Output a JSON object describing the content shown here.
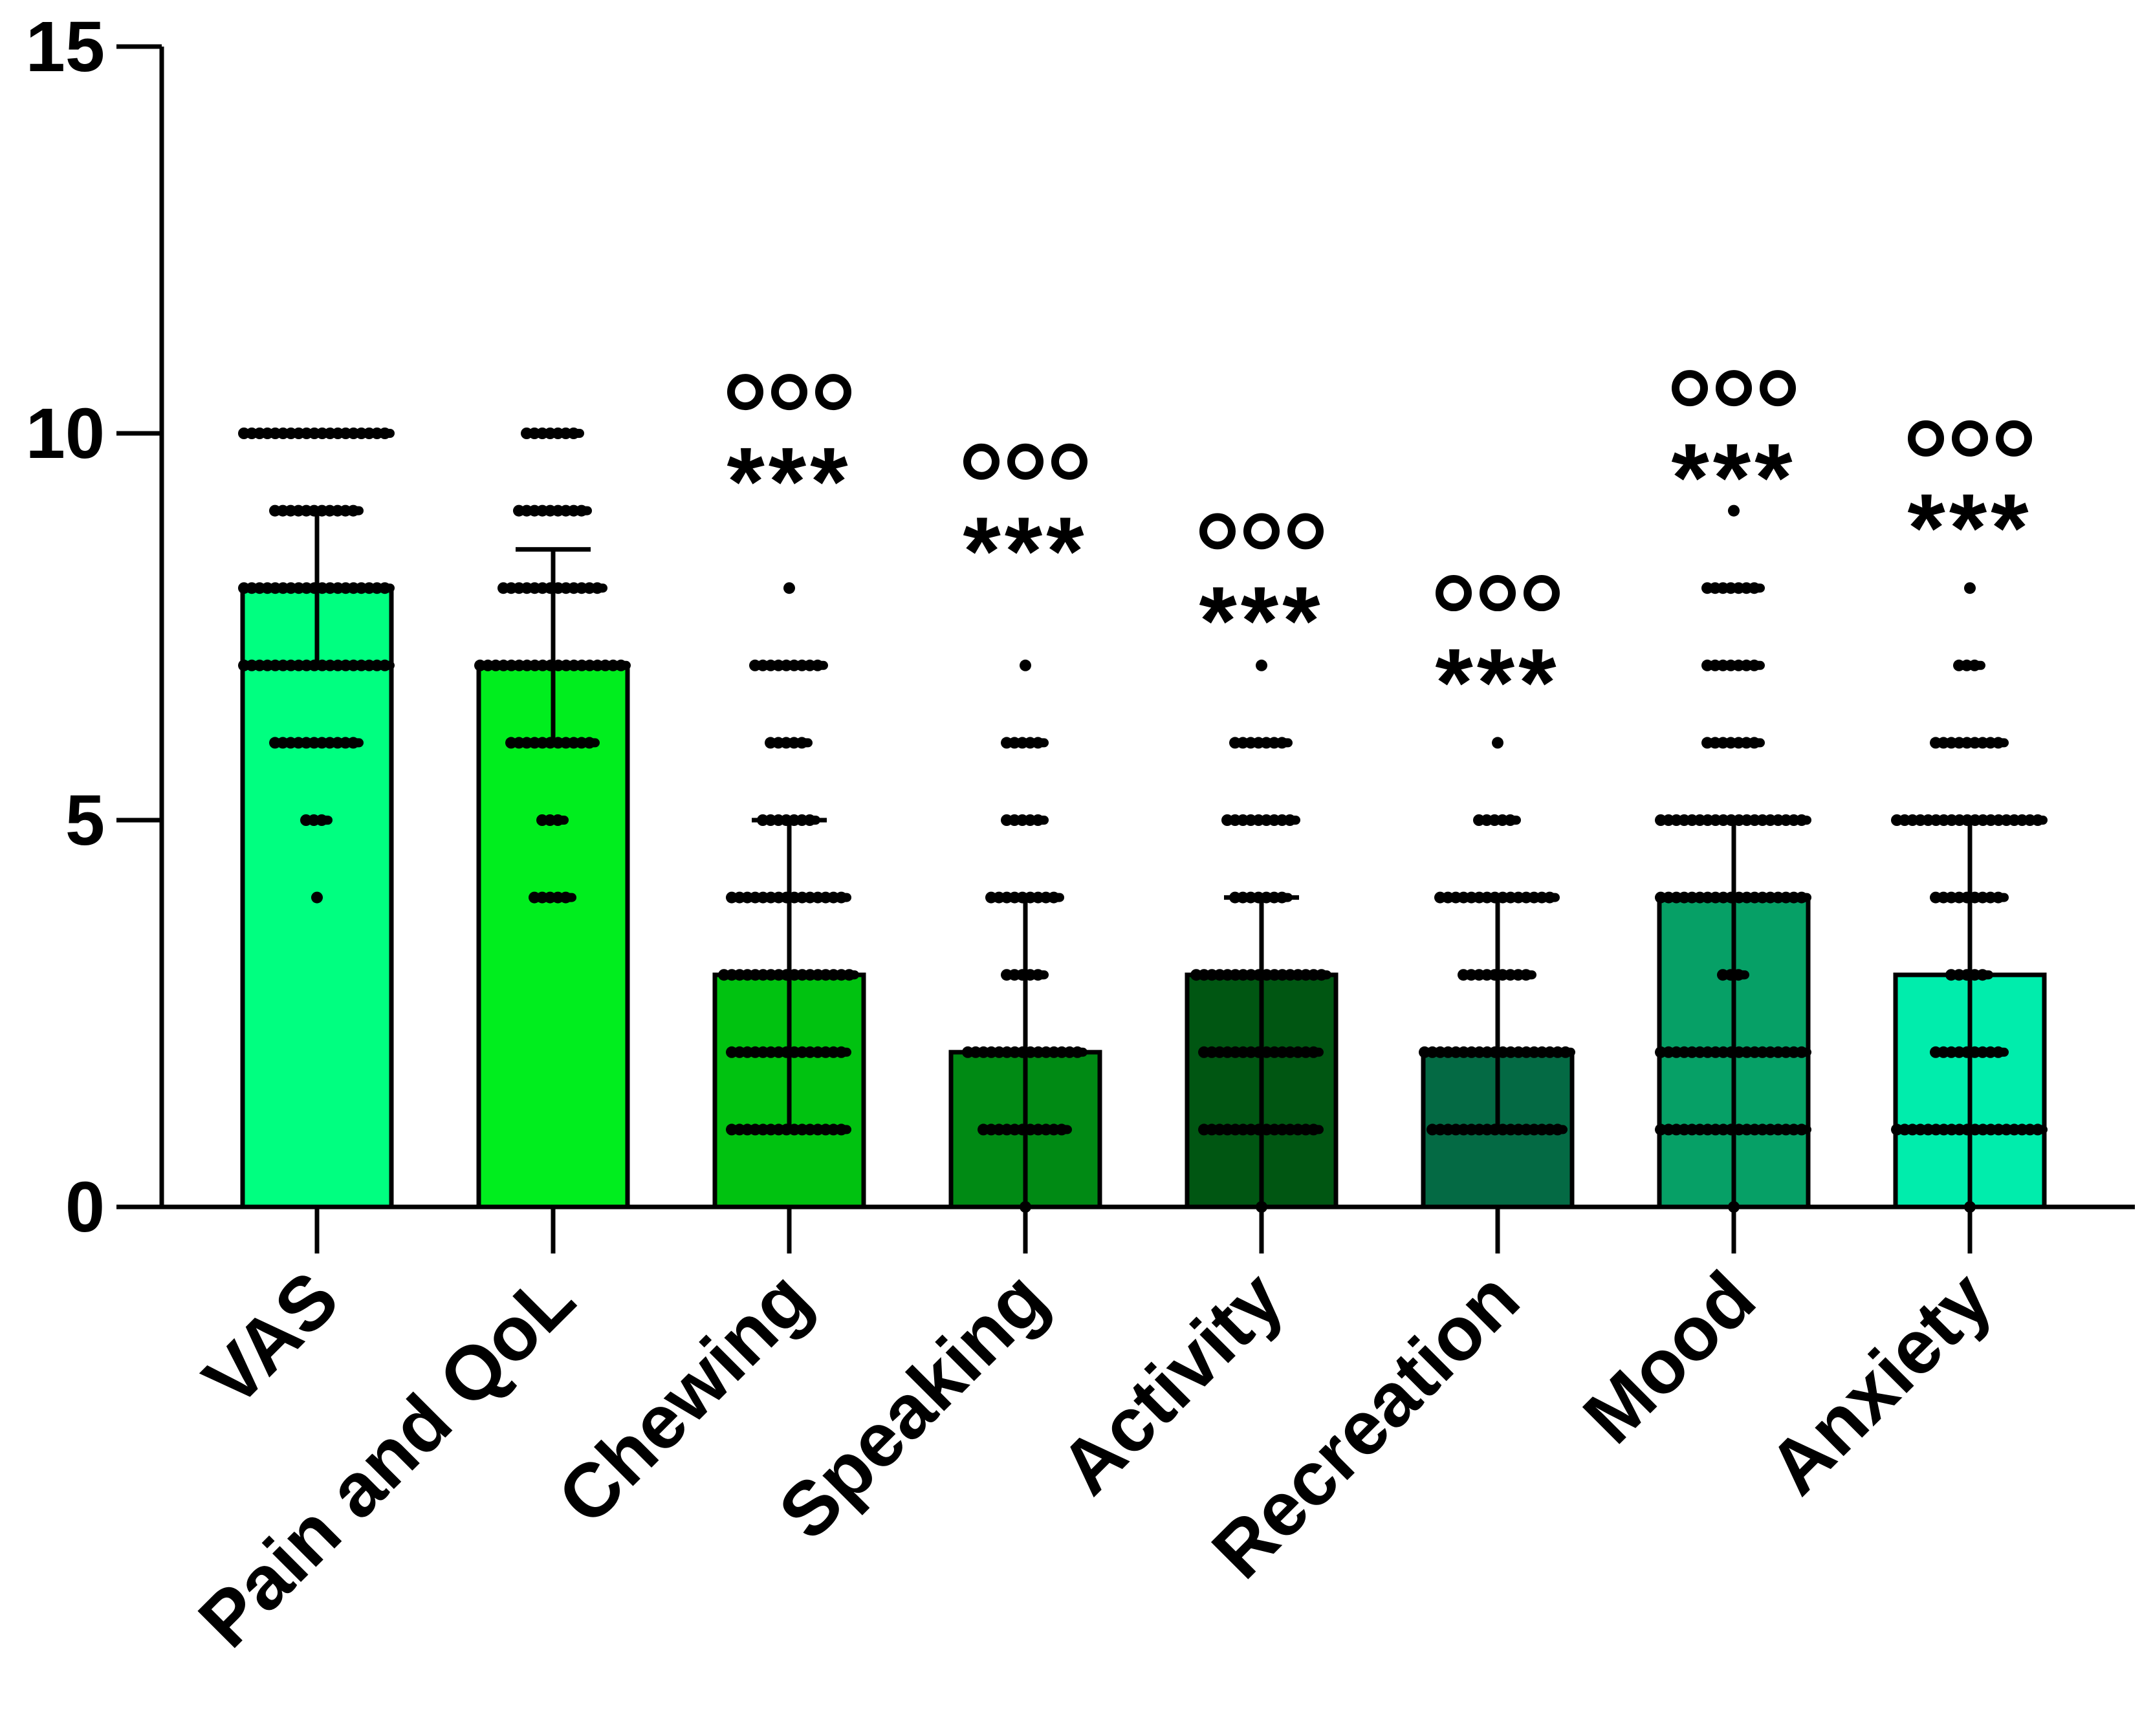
{
  "chart_data": {
    "type": "bar",
    "title": "",
    "xlabel": "",
    "ylabel": "",
    "ylim": [
      0,
      15
    ],
    "yticks": [
      0,
      5,
      10,
      15
    ],
    "grid": false,
    "categories": [
      "VAS",
      "Pain and QoL",
      "Chewing",
      "Speaking",
      "Activity",
      "Recreation",
      "Mood",
      "Anxiety"
    ],
    "values": [
      8,
      7,
      3,
      2,
      3,
      2,
      4,
      3
    ],
    "error_upper": [
      9,
      8.5,
      5,
      4,
      4,
      4,
      5,
      5
    ],
    "error_lower": [
      7,
      6,
      1,
      0,
      0,
      1,
      0,
      0
    ],
    "colors": [
      "#00ff80",
      "#00ee1e",
      "#00c210",
      "#008a14",
      "#005612",
      "#046a44",
      "#06a066",
      "#00edac"
    ],
    "points": [
      [
        4,
        5,
        6,
        7,
        8,
        9,
        10
      ],
      [
        4,
        5,
        6,
        7,
        8,
        9,
        10
      ],
      [
        1,
        2,
        3,
        4,
        5,
        6,
        7,
        8
      ],
      [
        0,
        1,
        2,
        3,
        4,
        5,
        6,
        7
      ],
      [
        0,
        1,
        2,
        3,
        4,
        5,
        6,
        7
      ],
      [
        1,
        2,
        3,
        4,
        5,
        6
      ],
      [
        0,
        1,
        2,
        3,
        4,
        5,
        6,
        7,
        8,
        9
      ],
      [
        0,
        1,
        2,
        3,
        4,
        5,
        6,
        7,
        8
      ]
    ],
    "point_widths": [
      [
        1,
        2,
        6,
        10,
        10,
        6,
        10
      ],
      [
        3,
        2,
        6,
        10,
        7,
        5,
        4
      ],
      [
        8,
        8,
        9,
        8,
        4,
        3,
        5,
        1
      ],
      [
        1,
        6,
        8,
        3,
        5,
        3,
        3,
        1
      ],
      [
        1,
        8,
        8,
        9,
        4,
        5,
        4,
        1
      ],
      [
        9,
        10,
        5,
        8,
        3,
        1
      ],
      [
        1,
        10,
        10,
        2,
        10,
        10,
        4,
        4,
        4,
        1
      ],
      [
        1,
        10,
        5,
        3,
        5,
        10,
        5,
        2,
        1
      ]
    ],
    "significance": [
      null,
      null,
      {
        "circles": "ooo",
        "stars": "***",
        "y": 10.2
      },
      {
        "circles": "ooo",
        "stars": "***",
        "y": 9.3
      },
      {
        "circles": "ooo",
        "stars": "***",
        "y": 8.4
      },
      {
        "circles": "ooo",
        "stars": "***",
        "y": 7.6
      },
      {
        "circles": "ooo",
        "stars": "***",
        "y": 10.25
      },
      {
        "circles": "ooo",
        "stars": "***",
        "y": 9.6
      }
    ]
  }
}
